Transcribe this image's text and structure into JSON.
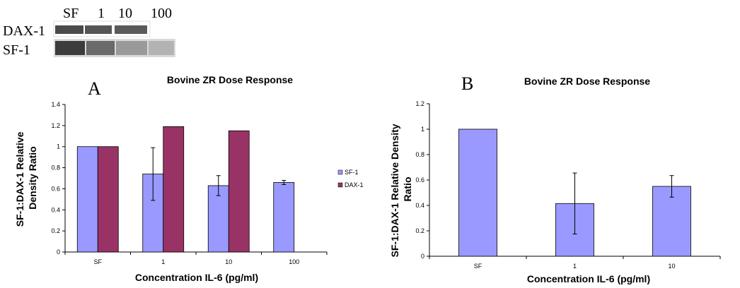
{
  "blot": {
    "lanes": [
      "SF",
      "1",
      "10",
      "100"
    ],
    "rows": [
      "DAX-1",
      "SF-1"
    ]
  },
  "colors": {
    "sf1": "#9999ff",
    "dax1": "#993366",
    "band": "#555555"
  },
  "chart_data": [
    {
      "type": "bar",
      "panel": "A",
      "title": "Bovine ZR Dose Response",
      "xlabel": "Concentration IL-6 (pg/ml)",
      "ylabel": "SF-1:DAX-1 Relative Density Ratio",
      "ylim": [
        0,
        1.4
      ],
      "yticks": [
        "0",
        "0.2",
        "0.4",
        "0.6",
        "0.8",
        "1",
        "1.2",
        "1.4"
      ],
      "categories": [
        "SF",
        "1",
        "10",
        "100"
      ],
      "legend_position": "right",
      "series": [
        {
          "name": "SF-1",
          "color": "#9999ff",
          "values": [
            1.0,
            0.74,
            0.63,
            0.66
          ],
          "errors": [
            0,
            0.25,
            0.095,
            0.02
          ]
        },
        {
          "name": "DAX-1",
          "color": "#993366",
          "values": [
            1.0,
            1.19,
            1.15,
            null
          ],
          "errors": [
            0,
            0,
            0,
            0
          ]
        }
      ]
    },
    {
      "type": "bar",
      "panel": "B",
      "title": "Bovine ZR Dose Response",
      "xlabel": "Concentration IL-6 (pg/ml)",
      "ylabel": "SF-1:DAX-1 Relative Density Ratio",
      "ylim": [
        0,
        1.2
      ],
      "yticks": [
        "0",
        "0.2",
        "0.4",
        "0.6",
        "0.8",
        "1",
        "1.2"
      ],
      "categories": [
        "SF",
        "1",
        "10"
      ],
      "series": [
        {
          "color": "#9999ff",
          "values": [
            1.0,
            0.415,
            0.55
          ],
          "errors": [
            0,
            0.24,
            0.085
          ]
        }
      ]
    }
  ]
}
